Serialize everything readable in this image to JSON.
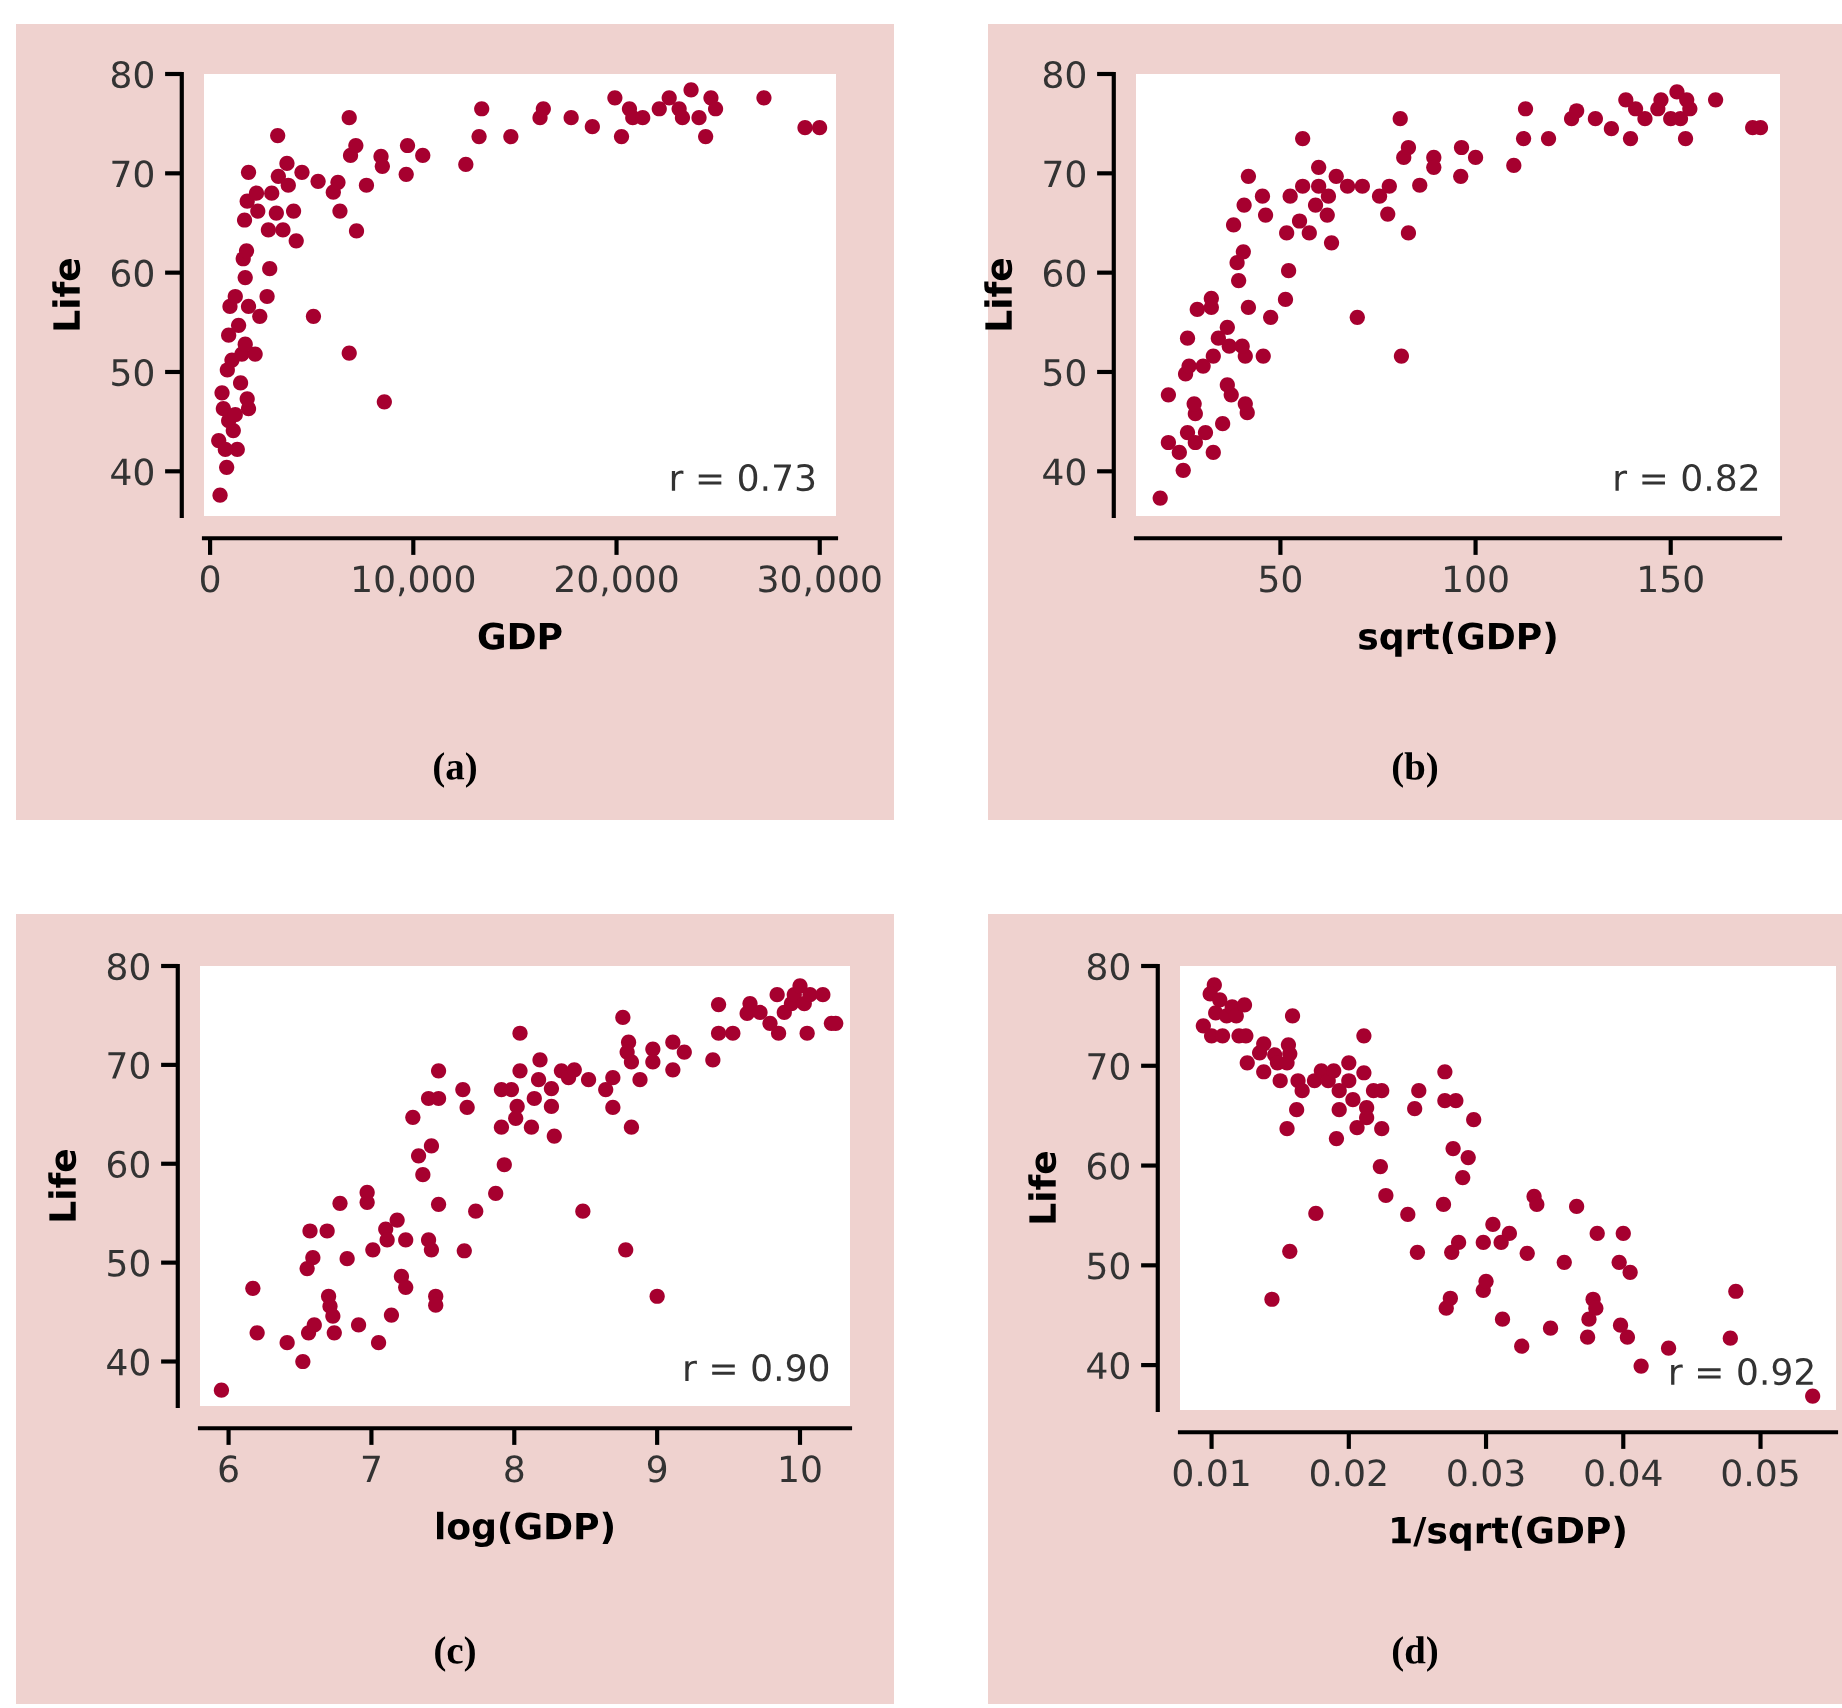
{
  "chart_data": [
    {
      "type": "scatter",
      "title": "(a)",
      "xlabel": "GDP",
      "ylabel": "Life",
      "annotations": [
        "r = 0.73"
      ],
      "color": "#a6002f",
      "xlim": [
        -300,
        30800
      ],
      "ylim": [
        35.5,
        80
      ],
      "xticks": [
        0,
        {
          "value": 10000,
          "label": "10,000"
        },
        {
          "value": 20000,
          "label": "20,000"
        },
        {
          "value": 30000,
          "label": "30,000"
        }
      ],
      "yticks": [
        40,
        50,
        60,
        70,
        80
      ],
      "x": [
        490,
        815,
        424,
        1337,
        750,
        1141,
        913,
        652,
        1239,
        1891,
        1826,
        587,
        1500,
        848,
        1076,
        1565,
        2217,
        1728,
        913,
        1402,
        978,
        1891,
        1239,
        2445,
        2804,
        5086,
        1728,
        2934,
        1630,
        1793,
        4238,
        1695,
        2869,
        3586,
        2347,
        3260,
        4108,
        6390,
        7205,
        1826,
        2282,
        3032,
        3358,
        3782,
        3847,
        4521,
        5314,
        6063,
        6292,
        7694,
        1891,
        3326,
        6846,
        6911,
        7172,
        8411,
        8476,
        9650,
        9715,
        10465,
        6846,
        8574,
        12584,
        13366,
        13236,
        14800,
        16235,
        16398,
        17767,
        18810,
        19919,
        20245,
        20636,
        20799,
        21288,
        22103,
        22592,
        23081,
        23244,
        23668,
        24059,
        24385,
        24646,
        24874,
        27254,
        29275,
        29992
      ],
      "values": [
        37.6,
        40.4,
        43.1,
        42.2,
        42.2,
        44.1,
        45.1,
        46.3,
        45.7,
        46.3,
        47.3,
        47.9,
        48.9,
        50.2,
        51.2,
        51.8,
        51.8,
        52.8,
        53.7,
        54.7,
        56.6,
        56.6,
        57.6,
        55.6,
        57.6,
        55.6,
        59.5,
        60.4,
        61.4,
        62.2,
        63.2,
        65.3,
        64.3,
        64.3,
        66.2,
        66.0,
        66.2,
        66.2,
        64.2,
        67.2,
        68.0,
        68.0,
        69.7,
        71.0,
        68.8,
        70.1,
        69.2,
        68.1,
        69.1,
        68.8,
        70.1,
        73.8,
        75.6,
        71.8,
        72.8,
        71.7,
        70.7,
        69.9,
        72.8,
        71.8,
        51.9,
        47.0,
        70.9,
        76.5,
        73.7,
        73.7,
        75.6,
        76.5,
        75.6,
        74.7,
        77.6,
        73.7,
        76.5,
        75.6,
        75.6,
        76.5,
        77.6,
        76.5,
        75.6,
        78.4,
        75.6,
        73.7,
        77.6,
        76.5,
        77.6,
        74.6,
        74.6
      ]
    },
    {
      "type": "scatter",
      "title": "(b)",
      "xlabel": "sqrt(GDP)",
      "ylabel": "Life",
      "annotations": [
        "r = 0.82"
      ],
      "color": "#a6002f",
      "xlim": [
        13,
        178
      ],
      "ylim": [
        35.5,
        80
      ],
      "xticks": [
        50,
        100,
        150
      ],
      "yticks": [
        40,
        50,
        60,
        70,
        80
      ],
      "x": [
        19.2,
        25.1,
        21.3,
        24.1,
        32.8,
        26.2,
        28.2,
        30.8,
        28.2,
        35.2,
        27.9,
        41.5,
        41.0,
        21.3,
        37.4,
        36.4,
        25.7,
        26.6,
        30.2,
        32.8,
        41.0,
        45.6,
        36.9,
        40.2,
        26.2,
        34.1,
        36.4,
        47.5,
        28.7,
        32.3,
        41.8,
        32.3,
        51.3,
        39.3,
        52.1,
        38.9,
        40.5,
        63.1,
        69.7,
        81.0,
        38.0,
        40.7,
        51.6,
        57.4,
        54.9,
        46.2,
        62.0,
        59.0,
        41.8,
        45.4,
        52.5,
        55.7,
        59.8,
        62.3,
        64.3,
        67.2,
        71.0,
        59.8,
        55.7,
        75.4,
        77.5,
        77.9,
        82.8,
        85.7,
        81.6,
        82.8,
        80.7,
        89.3,
        89.3,
        96.2,
        96.4,
        100,
        109.8,
        112.3,
        112.8,
        118.7,
        124.6,
        125.9,
        130.7,
        134.8,
        138.5,
        139.7,
        141.0,
        143.4,
        146.7,
        147.5,
        150,
        151.6,
        152.5,
        153.8,
        154.9,
        154.1,
        161.5,
        171,
        173
      ],
      "values": [
        37.3,
        40.1,
        42.9,
        41.9,
        41.9,
        43.9,
        42.9,
        43.9,
        45.8,
        44.8,
        46.8,
        45.9,
        46.8,
        47.7,
        47.7,
        48.7,
        49.8,
        50.6,
        50.6,
        51.6,
        51.6,
        51.6,
        52.6,
        52.6,
        53.4,
        53.4,
        54.5,
        55.5,
        56.3,
        56.5,
        56.5,
        57.4,
        57.3,
        59.2,
        60.2,
        61.0,
        62.1,
        63.0,
        55.5,
        51.6,
        64.8,
        66.8,
        64.0,
        64.0,
        65.2,
        65.8,
        65.8,
        66.8,
        69.7,
        67.7,
        67.7,
        68.7,
        68.7,
        67.7,
        69.7,
        68.7,
        68.7,
        70.6,
        73.5,
        67.7,
        65.9,
        68.7,
        64.0,
        68.8,
        71.6,
        72.6,
        75.5,
        71.6,
        70.6,
        69.7,
        72.6,
        71.6,
        70.8,
        73.5,
        76.5,
        73.5,
        75.5,
        76.3,
        75.5,
        74.5,
        77.4,
        73.5,
        76.5,
        75.5,
        76.5,
        77.4,
        75.5,
        78.2,
        75.5,
        73.5,
        76.5,
        77.4,
        77.4,
        74.6,
        74.6
      ]
    },
    {
      "type": "scatter",
      "title": "(c)",
      "xlabel": "log(GDP)",
      "ylabel": "Life",
      "annotations": [
        "r = 0.90"
      ],
      "color": "#a6002f",
      "xlim": [
        5.8,
        10.35
      ],
      "ylim": [
        35.5,
        80
      ],
      "xticks": [
        6,
        7,
        8,
        9,
        10
      ],
      "yticks": [
        40,
        50,
        60,
        70,
        80
      ],
      "x": [
        5.95,
        6.17,
        6.2,
        6.41,
        6.52,
        6.56,
        6.6,
        6.55,
        6.59,
        6.57,
        6.69,
        6.7,
        6.71,
        6.73,
        6.74,
        6.78,
        6.83,
        6.91,
        6.97,
        6.97,
        7.01,
        7.05,
        7.1,
        7.11,
        7.14,
        7.18,
        7.21,
        7.24,
        7.24,
        7.29,
        7.33,
        7.36,
        7.4,
        7.42,
        7.4,
        7.42,
        7.45,
        7.45,
        7.47,
        7.47,
        7.47,
        7.64,
        7.67,
        7.65,
        7.73,
        7.87,
        7.91,
        7.93,
        7.91,
        7.98,
        8.02,
        8.01,
        8.04,
        8.04,
        8.12,
        8.14,
        8.18,
        8.17,
        8.26,
        8.26,
        8.28,
        8.33,
        8.38,
        8.42,
        8.52,
        8.48,
        8.64,
        8.69,
        8.69,
        8.76,
        8.8,
        8.79,
        8.82,
        8.82,
        8.78,
        8.88,
        8.97,
        8.97,
        9.0,
        9.11,
        9.11,
        9.19,
        9.39,
        9.43,
        9.43,
        9.53,
        9.63,
        9.65,
        9.72,
        9.79,
        9.84,
        9.85,
        9.89,
        9.94,
        9.96,
        10.0,
        10.03,
        10.05,
        10.07,
        10.16,
        10.22,
        10.25
      ],
      "values": [
        37.1,
        47.4,
        42.9,
        41.9,
        40.0,
        42.9,
        43.7,
        49.4,
        50.5,
        53.2,
        53.2,
        46.6,
        45.6,
        44.6,
        42.9,
        56.0,
        50.4,
        43.7,
        57.1,
        56.1,
        51.3,
        41.9,
        53.4,
        52.3,
        44.7,
        54.3,
        48.6,
        47.5,
        52.3,
        64.7,
        60.8,
        58.9,
        66.6,
        61.8,
        52.3,
        51.3,
        46.6,
        45.7,
        66.6,
        69.4,
        55.9,
        67.5,
        65.7,
        51.2,
        55.2,
        57.0,
        63.7,
        59.9,
        67.5,
        67.5,
        65.8,
        64.6,
        73.2,
        69.4,
        63.7,
        66.6,
        70.5,
        68.5,
        67.6,
        65.8,
        62.8,
        69.4,
        68.7,
        69.5,
        68.5,
        55.2,
        67.5,
        65.7,
        68.7,
        74.8,
        72.3,
        71.3,
        70.3,
        63.7,
        51.3,
        68.5,
        71.6,
        70.3,
        46.6,
        69.5,
        72.3,
        71.3,
        70.5,
        73.2,
        76.1,
        73.2,
        75.2,
        76.2,
        75.3,
        74.2,
        77.1,
        73.2,
        75.3,
        76.2,
        77.1,
        78.0,
        76.2,
        73.2,
        77.1,
        77.1,
        74.2,
        74.2
      ]
    },
    {
      "type": "scatter",
      "title": "(d)",
      "xlabel": "1/sqrt(GDP)",
      "ylabel": "Life",
      "annotations": [
        "r = 0.92"
      ],
      "color": "#a6002f",
      "xlim": [
        0.0077,
        0.0555
      ],
      "ylim": [
        35.5,
        80
      ],
      "xticks": [
        0.01,
        0.02,
        0.03,
        0.04,
        0.05
      ],
      "yticks": [
        40,
        50,
        60,
        70,
        80
      ],
      "x": [
        0.0094,
        0.01,
        0.0102,
        0.0099,
        0.0106,
        0.0103,
        0.0108,
        0.0111,
        0.0115,
        0.0118,
        0.0124,
        0.012,
        0.0125,
        0.0159,
        0.0211,
        0.0126,
        0.0135,
        0.0138,
        0.0138,
        0.0146,
        0.0148,
        0.015,
        0.0156,
        0.0157,
        0.0155,
        0.0163,
        0.0166,
        0.0162,
        0.0155,
        0.0175,
        0.018,
        0.0185,
        0.0189,
        0.0193,
        0.0193,
        0.0191,
        0.02,
        0.02,
        0.0203,
        0.0206,
        0.0211,
        0.0213,
        0.0213,
        0.0218,
        0.0224,
        0.0224,
        0.0223,
        0.0227,
        0.0176,
        0.0157,
        0.0144,
        0.0243,
        0.0248,
        0.0251,
        0.025,
        0.027,
        0.027,
        0.0278,
        0.0291,
        0.0276,
        0.0287,
        0.0283,
        0.0269,
        0.0275,
        0.028,
        0.0271,
        0.0274,
        0.0298,
        0.03,
        0.0298,
        0.0305,
        0.0311,
        0.0317,
        0.0312,
        0.0326,
        0.033,
        0.0335,
        0.0337,
        0.0347,
        0.0357,
        0.0366,
        0.0374,
        0.0375,
        0.0378,
        0.038,
        0.0381,
        0.0398,
        0.0403,
        0.0397,
        0.0405,
        0.04,
        0.0413,
        0.0433,
        0.0478,
        0.0482,
        0.0538
      ],
      "values": [
        74.0,
        73.0,
        78.1,
        77.2,
        76.6,
        75.3,
        73.0,
        75.0,
        75.9,
        75.0,
        76.1,
        73.0,
        73.0,
        75.0,
        73.0,
        70.3,
        71.3,
        72.2,
        69.4,
        71.1,
        70.3,
        68.5,
        72.1,
        71.2,
        70.3,
        68.5,
        67.5,
        65.6,
        63.7,
        68.5,
        69.5,
        68.5,
        69.5,
        67.5,
        65.6,
        62.7,
        70.3,
        68.5,
        66.6,
        63.8,
        69.3,
        64.8,
        65.8,
        67.5,
        67.5,
        63.7,
        59.9,
        57.0,
        55.2,
        51.4,
        46.6,
        55.1,
        65.7,
        67.5,
        51.3,
        69.4,
        66.5,
        66.5,
        64.6,
        61.7,
        60.8,
        58.8,
        56.1,
        51.3,
        52.3,
        45.7,
        46.7,
        47.5,
        48.4,
        52.3,
        54.1,
        52.3,
        53.2,
        44.6,
        41.9,
        51.2,
        56.9,
        56.1,
        43.7,
        50.3,
        55.9,
        42.8,
        44.6,
        46.6,
        45.7,
        53.2,
        44.0,
        42.8,
        50.3,
        49.3,
        53.2,
        39.9,
        41.7,
        42.7,
        47.4,
        36.9
      ]
    }
  ]
}
